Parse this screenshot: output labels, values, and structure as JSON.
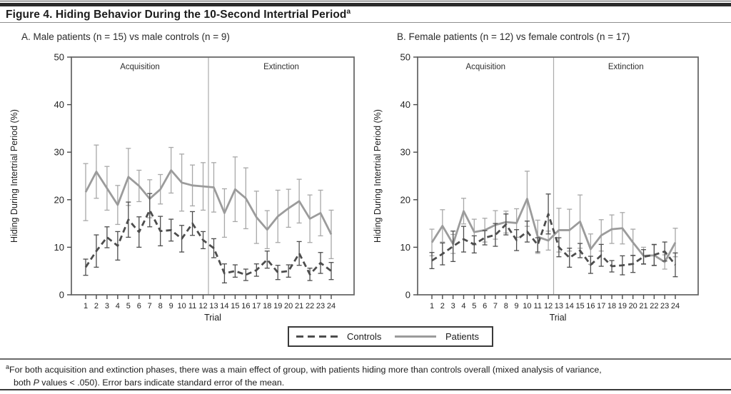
{
  "header": {
    "title": "Figure 4. Hiding Behavior During the 10-Second Intertrial Period",
    "title_sup": "a"
  },
  "chart_data": [
    {
      "type": "line",
      "title": "A. Male patients (n = 15) vs male controls (n = 9)",
      "xlabel": "Trial",
      "ylabel": "Hiding During Intertrial Period (%)",
      "ylim": [
        0,
        50
      ],
      "yticks": [
        0,
        10,
        20,
        30,
        40,
        50
      ],
      "x": [
        1,
        2,
        3,
        4,
        5,
        6,
        7,
        8,
        9,
        10,
        11,
        12,
        13,
        14,
        15,
        16,
        17,
        18,
        19,
        20,
        21,
        22,
        23,
        24
      ],
      "phases": {
        "labels": [
          "Acquisition",
          "Extinction"
        ],
        "divider_after_x": 12
      },
      "grid": "off",
      "series": [
        {
          "name": "Controls",
          "style": "dashed",
          "color": "#4d4d4d",
          "error_color": "#4d4d4d",
          "values": [
            5.8,
            9.2,
            12.1,
            10.3,
            15.8,
            13.2,
            17.8,
            13.4,
            13.6,
            11.8,
            15.0,
            11.5,
            9.8,
            4.5,
            5.0,
            4.2,
            5.2,
            7.4,
            4.7,
            5.0,
            8.7,
            4.3,
            6.7,
            5.0
          ],
          "sem": [
            1.7,
            3.4,
            2.2,
            3.0,
            3.7,
            3.2,
            3.5,
            3.1,
            2.3,
            2.8,
            2.5,
            1.8,
            2.0,
            2.0,
            1.3,
            1.2,
            1.3,
            1.8,
            1.5,
            1.3,
            2.5,
            1.3,
            2.2,
            1.8
          ]
        },
        {
          "name": "Patients",
          "style": "solid",
          "color": "#9b9b9b",
          "error_color": "#a8a8a8",
          "values": [
            21.6,
            25.9,
            22.4,
            18.9,
            24.8,
            22.9,
            20.2,
            22.2,
            26.2,
            23.6,
            23.0,
            22.8,
            22.6,
            17.2,
            22.2,
            20.3,
            16.3,
            13.7,
            16.5,
            18.2,
            19.7,
            16.0,
            17.2,
            12.7
          ],
          "sem": [
            6.0,
            5.6,
            4.6,
            4.1,
            6.0,
            3.3,
            4.0,
            3.1,
            4.8,
            6.0,
            4.3,
            5.0,
            5.2,
            5.1,
            6.8,
            6.4,
            5.5,
            4.0,
            5.5,
            4.0,
            4.6,
            5.0,
            4.8,
            5.1
          ]
        }
      ]
    },
    {
      "type": "line",
      "title": "B. Female patients (n = 12) vs female controls (n = 17)",
      "xlabel": "Trial",
      "ylabel": "Hiding During Intertrial Period (%)",
      "ylim": [
        0,
        50
      ],
      "yticks": [
        0,
        10,
        20,
        30,
        40,
        50
      ],
      "x": [
        1,
        2,
        3,
        4,
        5,
        6,
        7,
        8,
        9,
        10,
        11,
        12,
        13,
        14,
        15,
        16,
        17,
        18,
        19,
        20,
        21,
        22,
        23,
        24
      ],
      "phases": {
        "labels": [
          "Acquisition",
          "Extinction"
        ],
        "divider_after_x": 12
      },
      "grid": "off",
      "series": [
        {
          "name": "Controls",
          "style": "dashed",
          "color": "#4d4d4d",
          "error_color": "#4d4d4d",
          "values": [
            7.2,
            8.6,
            10.2,
            11.7,
            10.6,
            12.0,
            12.6,
            14.8,
            11.5,
            13.3,
            10.5,
            17.0,
            10.0,
            7.8,
            9.3,
            6.3,
            8.3,
            6.0,
            6.2,
            6.5,
            8.0,
            8.4,
            9.1,
            6.3
          ],
          "sem": [
            1.7,
            2.3,
            3.2,
            2.7,
            1.8,
            1.5,
            2.4,
            2.2,
            2.2,
            2.2,
            1.5,
            4.2,
            2.0,
            2.0,
            1.5,
            1.8,
            2.3,
            1.2,
            2.0,
            1.8,
            1.5,
            2.2,
            2.0,
            2.5
          ]
        },
        {
          "name": "Patients",
          "style": "solid",
          "color": "#9b9b9b",
          "error_color": "#a8a8a8",
          "values": [
            11.0,
            14.5,
            10.7,
            17.6,
            13.2,
            13.6,
            14.7,
            15.3,
            15.1,
            20.2,
            12.2,
            11.4,
            13.6,
            13.6,
            15.4,
            9.6,
            12.5,
            13.8,
            14.0,
            11.0,
            8.2,
            8.3,
            6.9,
            11.0
          ],
          "sem": [
            2.8,
            3.4,
            2.0,
            2.7,
            2.7,
            2.5,
            3.0,
            2.3,
            3.0,
            5.8,
            3.5,
            2.0,
            4.6,
            4.4,
            5.6,
            3.2,
            3.3,
            3.0,
            3.3,
            2.8,
            1.8,
            2.2,
            1.5,
            3.0
          ]
        }
      ]
    }
  ],
  "legend": {
    "items": [
      {
        "label": "Controls",
        "style": "dashed",
        "color": "#4d4d4d"
      },
      {
        "label": "Patients",
        "style": "solid",
        "color": "#9b9b9b"
      }
    ]
  },
  "footnote": {
    "sup": "a",
    "line1": "For both acquisition and extinction phases, there was a main effect of group, with patients hiding more than controls overall (mixed analysis of variance,",
    "line2_pre": "both ",
    "line2_italic": "P",
    "line2_post": " values < .050). Error bars indicate standard error of the mean."
  }
}
